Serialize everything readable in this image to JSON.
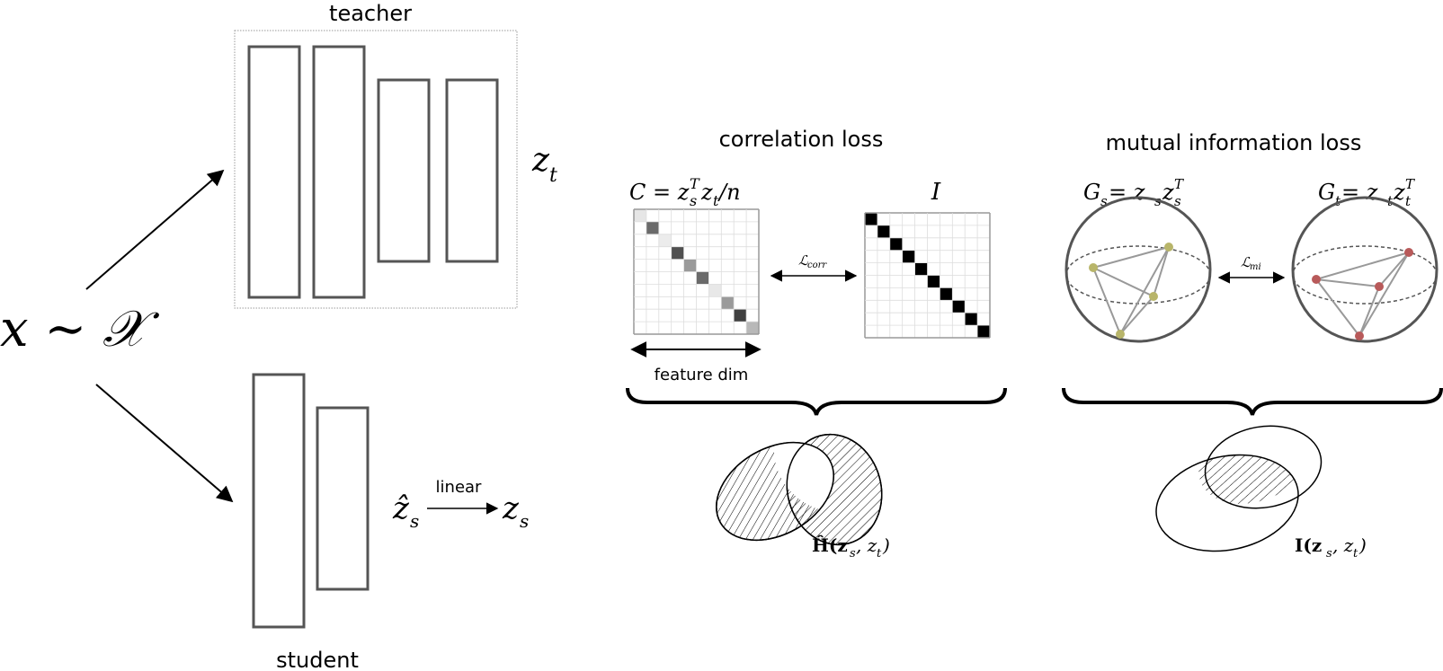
{
  "labels": {
    "input": "x ∼ 𝒳",
    "teacher": "teacher",
    "student": "student",
    "teacher_output": "z",
    "teacher_output_sub": "t",
    "student_hat": "ẑ",
    "student_hat_sub": "s",
    "linear": "linear",
    "student_output": "z",
    "student_output_sub": "s"
  },
  "correlation": {
    "title": "correlation loss",
    "matrix_formula": "C = z",
    "matrix_formula_sup": "T",
    "matrix_formula_sub": "s",
    "matrix_formula_rest": "z",
    "matrix_formula_rest_sub": "t",
    "matrix_formula_tail": "/n",
    "identity_label": "I",
    "loss_label": "ℒ",
    "loss_label_sub": "corr",
    "axis_label": "feature dim",
    "venn_label": "Ĥ(z",
    "venn_label_sub": "s",
    "venn_label_tail": ", z",
    "venn_label_tail_sub": "t",
    "venn_label_close": ")",
    "diagonal_shades": [
      "#e6e6e6",
      "#6a6a6a",
      "#ececec",
      "#505050",
      "#9a9a9a",
      "#6a6a6a",
      "#e8e8e8",
      "#9a9a9a",
      "#404040",
      "#b8b8b8"
    ]
  },
  "mutual_info": {
    "title": "mutual information loss",
    "gram_s": "G",
    "gram_s_sub": "s",
    "gram_s_eq": " = z",
    "gram_s_eq_sub": "s",
    "gram_s_eq2": "z",
    "gram_s_eq2_sub": "s",
    "gram_s_eq2_sup": "T",
    "gram_t": "G",
    "gram_t_sub": "t",
    "gram_t_eq": " = z",
    "gram_t_eq_sub": "t",
    "gram_t_eq2": "z",
    "gram_t_eq2_sub": "t",
    "gram_t_eq2_sup": "T",
    "loss_label": "ℒ",
    "loss_label_sub": "mi",
    "venn_label": "I(z",
    "venn_label_sub": "s",
    "venn_label_tail": ", z",
    "venn_label_tail_sub": "t",
    "venn_label_close": ")",
    "student_point_color": "#b8b56a",
    "teacher_point_color": "#b85a5a"
  }
}
